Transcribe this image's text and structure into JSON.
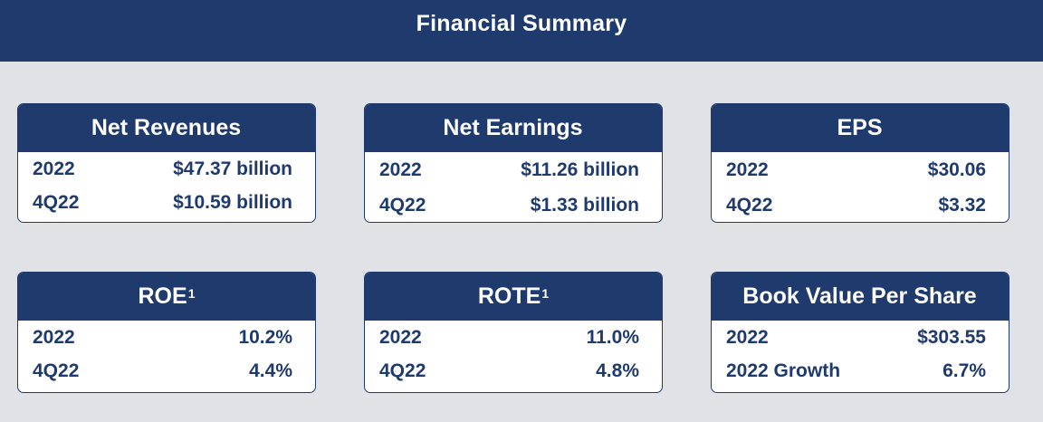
{
  "header": {
    "title": "Financial Summary"
  },
  "cards": [
    {
      "title": "Net Revenues",
      "sup": "",
      "rows": [
        {
          "label": "2022",
          "value": "$47.37 billion"
        },
        {
          "label": "4Q22",
          "value": "$10.59 billion"
        }
      ]
    },
    {
      "title": "Net Earnings",
      "sup": "",
      "rows": [
        {
          "label": "2022",
          "value": "$11.26 billion"
        },
        {
          "label": "4Q22",
          "value": "$1.33 billion"
        }
      ]
    },
    {
      "title": "EPS",
      "sup": "",
      "rows": [
        {
          "label": "2022",
          "value": "$30.06"
        },
        {
          "label": "4Q22",
          "value": "$3.32"
        }
      ]
    },
    {
      "title": "ROE",
      "sup": "1",
      "rows": [
        {
          "label": "2022",
          "value": "10.2%"
        },
        {
          "label": "4Q22",
          "value": "4.4%"
        }
      ]
    },
    {
      "title": "ROTE",
      "sup": "1",
      "rows": [
        {
          "label": "2022",
          "value": "11.0%"
        },
        {
          "label": "4Q22",
          "value": "4.8%"
        }
      ]
    },
    {
      "title": "Book Value Per Share",
      "sup": "",
      "rows": [
        {
          "label": "2022",
          "value": "$303.55"
        },
        {
          "label": "2022 Growth",
          "value": "6.7%"
        }
      ]
    }
  ]
}
